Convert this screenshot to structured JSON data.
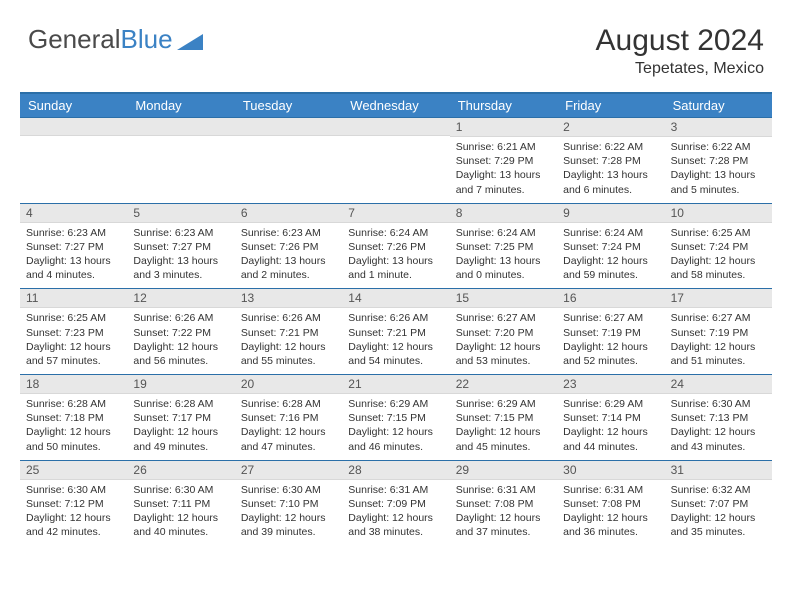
{
  "logo": {
    "part1": "General",
    "part2": "Blue"
  },
  "title": "August 2024",
  "location": "Tepetates, Mexico",
  "colors": {
    "header_bg": "#3b82c4",
    "border": "#2b6fa8",
    "daynum_bg": "#e8e8e8",
    "text": "#333333"
  },
  "day_labels": [
    "Sunday",
    "Monday",
    "Tuesday",
    "Wednesday",
    "Thursday",
    "Friday",
    "Saturday"
  ],
  "weeks": [
    [
      {
        "n": "",
        "t": ""
      },
      {
        "n": "",
        "t": ""
      },
      {
        "n": "",
        "t": ""
      },
      {
        "n": "",
        "t": ""
      },
      {
        "n": "1",
        "t": "Sunrise: 6:21 AM\nSunset: 7:29 PM\nDaylight: 13 hours and 7 minutes."
      },
      {
        "n": "2",
        "t": "Sunrise: 6:22 AM\nSunset: 7:28 PM\nDaylight: 13 hours and 6 minutes."
      },
      {
        "n": "3",
        "t": "Sunrise: 6:22 AM\nSunset: 7:28 PM\nDaylight: 13 hours and 5 minutes."
      }
    ],
    [
      {
        "n": "4",
        "t": "Sunrise: 6:23 AM\nSunset: 7:27 PM\nDaylight: 13 hours and 4 minutes."
      },
      {
        "n": "5",
        "t": "Sunrise: 6:23 AM\nSunset: 7:27 PM\nDaylight: 13 hours and 3 minutes."
      },
      {
        "n": "6",
        "t": "Sunrise: 6:23 AM\nSunset: 7:26 PM\nDaylight: 13 hours and 2 minutes."
      },
      {
        "n": "7",
        "t": "Sunrise: 6:24 AM\nSunset: 7:26 PM\nDaylight: 13 hours and 1 minute."
      },
      {
        "n": "8",
        "t": "Sunrise: 6:24 AM\nSunset: 7:25 PM\nDaylight: 13 hours and 0 minutes."
      },
      {
        "n": "9",
        "t": "Sunrise: 6:24 AM\nSunset: 7:24 PM\nDaylight: 12 hours and 59 minutes."
      },
      {
        "n": "10",
        "t": "Sunrise: 6:25 AM\nSunset: 7:24 PM\nDaylight: 12 hours and 58 minutes."
      }
    ],
    [
      {
        "n": "11",
        "t": "Sunrise: 6:25 AM\nSunset: 7:23 PM\nDaylight: 12 hours and 57 minutes."
      },
      {
        "n": "12",
        "t": "Sunrise: 6:26 AM\nSunset: 7:22 PM\nDaylight: 12 hours and 56 minutes."
      },
      {
        "n": "13",
        "t": "Sunrise: 6:26 AM\nSunset: 7:21 PM\nDaylight: 12 hours and 55 minutes."
      },
      {
        "n": "14",
        "t": "Sunrise: 6:26 AM\nSunset: 7:21 PM\nDaylight: 12 hours and 54 minutes."
      },
      {
        "n": "15",
        "t": "Sunrise: 6:27 AM\nSunset: 7:20 PM\nDaylight: 12 hours and 53 minutes."
      },
      {
        "n": "16",
        "t": "Sunrise: 6:27 AM\nSunset: 7:19 PM\nDaylight: 12 hours and 52 minutes."
      },
      {
        "n": "17",
        "t": "Sunrise: 6:27 AM\nSunset: 7:19 PM\nDaylight: 12 hours and 51 minutes."
      }
    ],
    [
      {
        "n": "18",
        "t": "Sunrise: 6:28 AM\nSunset: 7:18 PM\nDaylight: 12 hours and 50 minutes."
      },
      {
        "n": "19",
        "t": "Sunrise: 6:28 AM\nSunset: 7:17 PM\nDaylight: 12 hours and 49 minutes."
      },
      {
        "n": "20",
        "t": "Sunrise: 6:28 AM\nSunset: 7:16 PM\nDaylight: 12 hours and 47 minutes."
      },
      {
        "n": "21",
        "t": "Sunrise: 6:29 AM\nSunset: 7:15 PM\nDaylight: 12 hours and 46 minutes."
      },
      {
        "n": "22",
        "t": "Sunrise: 6:29 AM\nSunset: 7:15 PM\nDaylight: 12 hours and 45 minutes."
      },
      {
        "n": "23",
        "t": "Sunrise: 6:29 AM\nSunset: 7:14 PM\nDaylight: 12 hours and 44 minutes."
      },
      {
        "n": "24",
        "t": "Sunrise: 6:30 AM\nSunset: 7:13 PM\nDaylight: 12 hours and 43 minutes."
      }
    ],
    [
      {
        "n": "25",
        "t": "Sunrise: 6:30 AM\nSunset: 7:12 PM\nDaylight: 12 hours and 42 minutes."
      },
      {
        "n": "26",
        "t": "Sunrise: 6:30 AM\nSunset: 7:11 PM\nDaylight: 12 hours and 40 minutes."
      },
      {
        "n": "27",
        "t": "Sunrise: 6:30 AM\nSunset: 7:10 PM\nDaylight: 12 hours and 39 minutes."
      },
      {
        "n": "28",
        "t": "Sunrise: 6:31 AM\nSunset: 7:09 PM\nDaylight: 12 hours and 38 minutes."
      },
      {
        "n": "29",
        "t": "Sunrise: 6:31 AM\nSunset: 7:08 PM\nDaylight: 12 hours and 37 minutes."
      },
      {
        "n": "30",
        "t": "Sunrise: 6:31 AM\nSunset: 7:08 PM\nDaylight: 12 hours and 36 minutes."
      },
      {
        "n": "31",
        "t": "Sunrise: 6:32 AM\nSunset: 7:07 PM\nDaylight: 12 hours and 35 minutes."
      }
    ]
  ]
}
